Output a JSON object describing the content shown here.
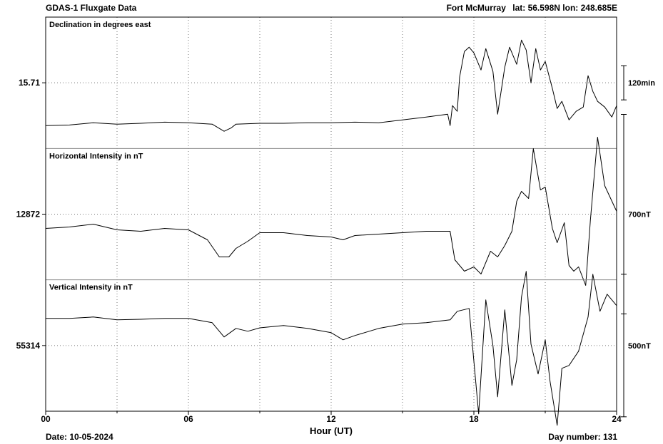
{
  "header": {
    "title": "GDAS-1 Fluxgate Data",
    "station": "Fort McMurray",
    "location": "lat: 56.598N lon: 248.685E"
  },
  "footer": {
    "date": "Date: 10-05-2024",
    "day_number": "Day number:  131"
  },
  "chart_data": {
    "type": "line",
    "xlabel": "Hour (UT)",
    "xlim": [
      0,
      24
    ],
    "x_ticks": [
      0,
      6,
      12,
      18,
      24
    ],
    "x_tick_labels": [
      "00",
      "06",
      "12",
      "18",
      "24"
    ],
    "x_minor_gridlines": [
      3,
      9,
      15,
      21
    ],
    "grid": true,
    "panels": [
      {
        "label": "Declination in degrees east",
        "reference_value": "15.71",
        "scale_bar_label": "120min",
        "scale_bar_span": 120,
        "x": [
          0,
          1,
          2,
          3,
          4,
          5,
          6,
          7,
          7.5,
          7.8,
          8,
          9,
          10,
          11,
          12,
          13,
          14,
          15,
          16,
          16.9,
          17.0,
          17.1,
          17.3,
          17.4,
          17.6,
          17.8,
          18.0,
          18.3,
          18.5,
          18.8,
          19.0,
          19.3,
          19.5,
          19.8,
          20.0,
          20.2,
          20.4,
          20.6,
          20.8,
          21.0,
          21.3,
          21.5,
          21.7,
          22.0,
          22.3,
          22.6,
          22.8,
          23.0,
          23.2,
          23.5,
          23.8,
          24
        ],
        "y": [
          -150,
          -148,
          -140,
          -145,
          -142,
          -138,
          -140,
          -145,
          -170,
          -158,
          -145,
          -142,
          -142,
          -140,
          -140,
          -138,
          -140,
          -130,
          -120,
          -110,
          -150,
          -80,
          -100,
          20,
          110,
          125,
          105,
          45,
          120,
          40,
          -110,
          55,
          125,
          65,
          150,
          115,
          0,
          120,
          45,
          75,
          -20,
          -90,
          -65,
          -130,
          -100,
          -85,
          25,
          -30,
          -65,
          -85,
          -120,
          -80
        ]
      },
      {
        "label": "Horizontal Intensity in nT",
        "reference_value": "12872",
        "scale_bar_label": "700nT",
        "scale_bar_span": 700,
        "x": [
          0,
          1,
          2,
          3,
          4,
          5,
          6,
          6.8,
          7.3,
          7.7,
          8,
          8.5,
          9,
          10,
          11,
          12,
          12.5,
          13,
          14,
          15,
          16,
          17.0,
          17.2,
          17.6,
          18.0,
          18.3,
          18.7,
          19.0,
          19.3,
          19.6,
          19.8,
          20.0,
          20.3,
          20.5,
          20.8,
          21.0,
          21.3,
          21.5,
          21.8,
          22.0,
          22.2,
          22.4,
          22.7,
          22.9,
          23.2,
          23.5,
          24
        ],
        "y": [
          -50,
          -45,
          -35,
          -55,
          -60,
          -50,
          -55,
          -90,
          -150,
          -150,
          -120,
          -95,
          -65,
          -65,
          -75,
          -80,
          -90,
          -75,
          -70,
          -65,
          -60,
          -60,
          -160,
          -200,
          -185,
          -210,
          -130,
          -150,
          -110,
          -60,
          45,
          80,
          55,
          230,
          85,
          95,
          -50,
          -100,
          -30,
          -180,
          -200,
          -185,
          -250,
          -20,
          270,
          100,
          10
        ]
      },
      {
        "label": "Vertical Intensity in nT",
        "reference_value": "55314",
        "scale_bar_label": "500nT",
        "scale_bar_span": 500,
        "x": [
          0,
          1,
          2,
          3,
          4,
          5,
          6,
          7,
          7.5,
          8,
          8.5,
          9,
          10,
          11,
          12,
          12.5,
          13,
          14,
          15,
          16,
          17,
          17.3,
          17.8,
          18.2,
          18.5,
          18.8,
          19.0,
          19.3,
          19.6,
          19.8,
          20.0,
          20.2,
          20.4,
          20.7,
          21.0,
          21.2,
          21.5,
          21.7,
          22.0,
          22.4,
          22.8,
          23.0,
          23.3,
          23.6,
          24
        ],
        "y": [
          95,
          95,
          100,
          90,
          92,
          95,
          95,
          80,
          30,
          60,
          50,
          62,
          70,
          60,
          45,
          20,
          35,
          60,
          75,
          80,
          90,
          120,
          130,
          -240,
          160,
          0,
          -180,
          125,
          -140,
          -50,
          170,
          260,
          5,
          -100,
          20,
          -125,
          -280,
          -80,
          -70,
          -20,
          100,
          250,
          120,
          180,
          140
        ]
      }
    ]
  }
}
